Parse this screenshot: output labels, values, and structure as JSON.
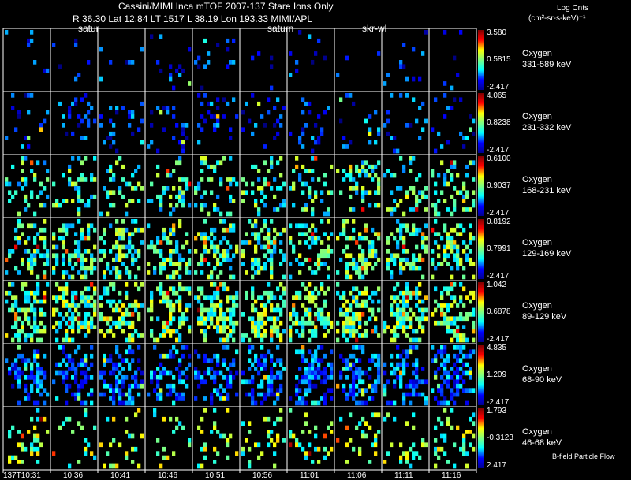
{
  "header": {
    "title": "Cassini/MIMI Inca mTOF  2007-137   Stare   Ions Only",
    "line2": "R      36.30 Lat 12.84 LT 1517 L      38.19 Lon      193.33  MIMI/APL",
    "cb_title": "Log Cnts",
    "cb_units": "(cm²-sr-s-keV)⁻¹",
    "footnote": "B-field Particle Flow"
  },
  "panel_tags": [
    {
      "col": 1,
      "text": "satur"
    },
    {
      "col": 5,
      "text": "saturn"
    },
    {
      "col": 7,
      "text": "skr-wl"
    }
  ],
  "chart_data": {
    "type": "heatmap",
    "title": "Cassini/MIMI Inca mTOF 2007-137 Stare Ions Only",
    "columns": [
      "137T10:31",
      "10:36",
      "10:41",
      "10:46",
      "10:51",
      "10:56",
      "11:01",
      "11:06",
      "11:11",
      "11:16"
    ],
    "rows": [
      {
        "species": "Oxygen",
        "energy": "331-589 keV",
        "cmax": "3.580",
        "cmid": "0.5815",
        "cmin": "-2.417",
        "density": 0.05,
        "level": 0.15
      },
      {
        "species": "Oxygen",
        "energy": "231-332 keV",
        "cmax": "4.065",
        "cmid": "0.8238",
        "cmin": "-2.417",
        "density": 0.16,
        "level": 0.17
      },
      {
        "species": "Oxygen",
        "energy": "168-231 keV",
        "cmax": "0.6100",
        "cmid": "0.9037",
        "cmin": "-2.417",
        "density": 0.33,
        "level": 0.42
      },
      {
        "species": "Oxygen",
        "energy": "129-169 keV",
        "cmax": "0.8192",
        "cmid": "0.7991",
        "cmin": "-2.417",
        "density": 0.5,
        "level": 0.44
      },
      {
        "species": "Oxygen",
        "energy": "89-129 keV",
        "cmax": "1.042",
        "cmid": "0.6878",
        "cmin": "-2.417",
        "density": 0.6,
        "level": 0.48
      },
      {
        "species": "Oxygen",
        "energy": "68-90 keV",
        "cmax": "4.835",
        "cmid": "1.209",
        "cmin": "-2.417",
        "density": 0.55,
        "level": 0.22
      },
      {
        "species": "Oxygen",
        "energy": "46-68 keV",
        "cmax": "1.793",
        "cmid": "-0.3123",
        "cmin": "2.417",
        "density": 0.2,
        "level": 0.5
      }
    ]
  }
}
